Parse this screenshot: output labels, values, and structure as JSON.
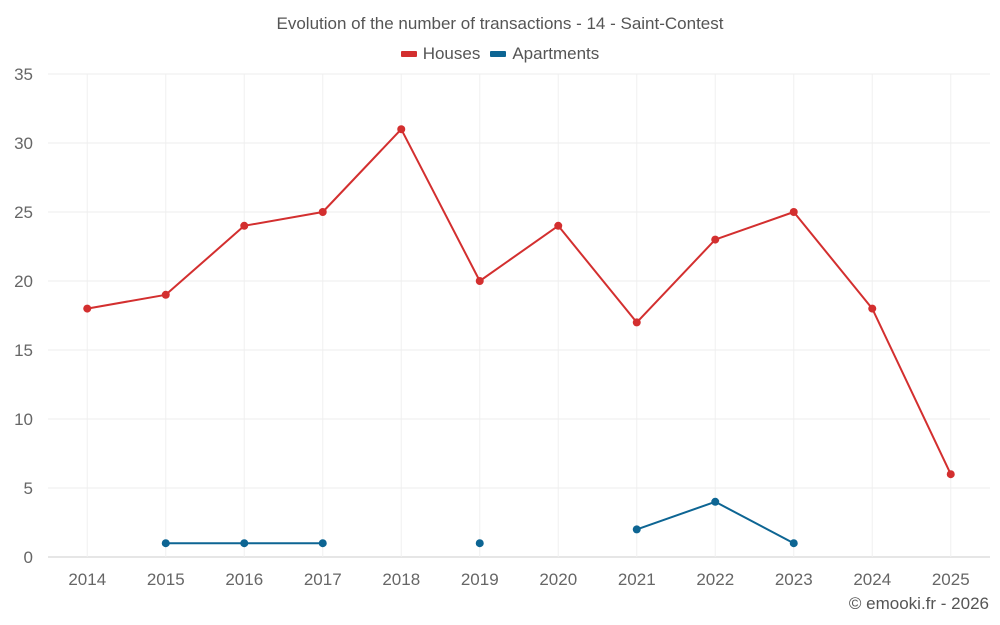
{
  "chart_data": {
    "type": "line",
    "title": "Evolution of the number of transactions - 14 - Saint-Contest",
    "xlabel": "",
    "ylabel": "",
    "x": [
      "2014",
      "2015",
      "2016",
      "2017",
      "2018",
      "2019",
      "2020",
      "2021",
      "2022",
      "2023",
      "2024",
      "2025"
    ],
    "ylim": [
      0,
      35
    ],
    "yticks": [
      0,
      5,
      10,
      15,
      20,
      25,
      30,
      35
    ],
    "grid": true,
    "legend_position": "top-center",
    "series": [
      {
        "name": "Houses",
        "color": "#d32f2f",
        "values": [
          18,
          19,
          24,
          25,
          31,
          20,
          24,
          17,
          23,
          25,
          18,
          6
        ]
      },
      {
        "name": "Apartments",
        "color": "#0d6593",
        "values": [
          null,
          1,
          1,
          1,
          null,
          1,
          null,
          2,
          4,
          1,
          null,
          null
        ]
      }
    ]
  },
  "credit": "© emooki.fr - 2026"
}
